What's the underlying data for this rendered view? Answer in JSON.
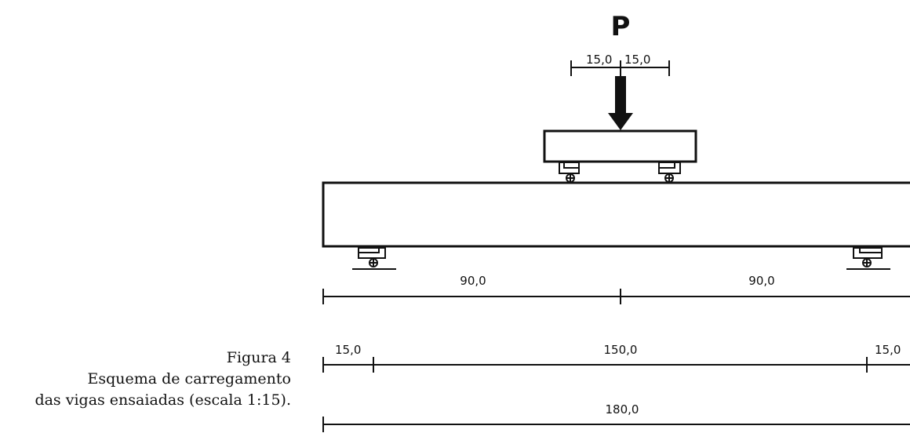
{
  "load": {
    "label": "P"
  },
  "dimensions": {
    "load_plate_left": "15,0",
    "load_plate_right": "15,0",
    "half_span_left": "90,0",
    "half_span_right": "90,0",
    "overhang_left": "15,0",
    "clear_span": "150,0",
    "overhang_right": "15,0",
    "total_length": "180,0"
  },
  "caption": {
    "figure": "Figura 4",
    "line1": "Esquema de carregamento",
    "line2": "das vigas ensaiadas (escala 1:15)."
  }
}
